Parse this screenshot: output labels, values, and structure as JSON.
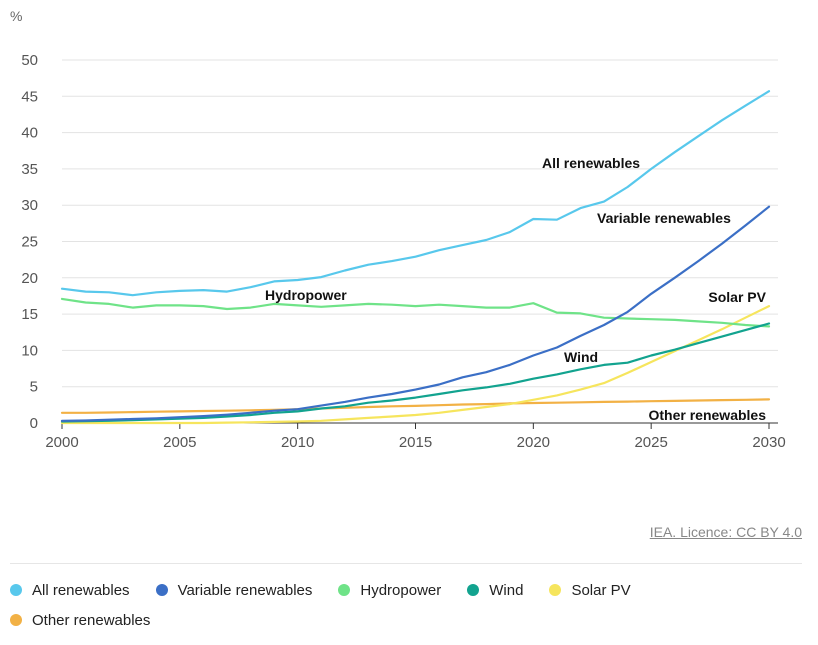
{
  "unit_label": "%",
  "credit": "IEA. Licence: CC BY 4.0",
  "legend": [
    {
      "name": "All renewables",
      "color": "#58c8ec"
    },
    {
      "name": "Variable renewables",
      "color": "#3b6fc6"
    },
    {
      "name": "Hydropower",
      "color": "#6fe388"
    },
    {
      "name": "Wind",
      "color": "#12a38f"
    },
    {
      "name": "Solar PV",
      "color": "#f6e55d"
    },
    {
      "name": "Other renewables",
      "color": "#f2b145"
    }
  ],
  "chart_data": {
    "type": "line",
    "title": "",
    "xlabel": "",
    "ylabel": "%",
    "xlim": [
      2000,
      2030
    ],
    "ylim": [
      0,
      50
    ],
    "xticks": [
      2000,
      2005,
      2010,
      2015,
      2020,
      2025,
      2030
    ],
    "yticks": [
      0,
      5,
      10,
      15,
      20,
      25,
      30,
      35,
      40,
      45,
      50
    ],
    "grid": "horizontal",
    "legend_position": "bottom",
    "x": [
      2000,
      2001,
      2002,
      2003,
      2004,
      2005,
      2006,
      2007,
      2008,
      2009,
      2010,
      2011,
      2012,
      2013,
      2014,
      2015,
      2016,
      2017,
      2018,
      2019,
      2020,
      2021,
      2022,
      2023,
      2024,
      2025,
      2026,
      2027,
      2028,
      2029,
      2030
    ],
    "series": [
      {
        "name": "All renewables",
        "color": "#58c8ec",
        "label": "All renewables",
        "values": [
          18.5,
          18.1,
          18.0,
          17.6,
          18.0,
          18.2,
          18.3,
          18.1,
          18.7,
          19.5,
          19.7,
          20.1,
          21.0,
          21.8,
          22.3,
          22.9,
          23.8,
          24.5,
          25.2,
          26.3,
          28.1,
          28.0,
          29.6,
          30.5,
          32.5,
          35.0,
          37.3,
          39.5,
          41.7,
          43.7,
          45.7
        ]
      },
      {
        "name": "Variable renewables",
        "color": "#3b6fc6",
        "label": "Variable renewables",
        "values": [
          0.3,
          0.35,
          0.45,
          0.55,
          0.65,
          0.8,
          0.95,
          1.15,
          1.4,
          1.7,
          1.9,
          2.4,
          2.9,
          3.5,
          4.0,
          4.6,
          5.3,
          6.3,
          7.0,
          8.0,
          9.3,
          10.4,
          12.0,
          13.5,
          15.3,
          17.8,
          20.0,
          22.3,
          24.7,
          27.2,
          29.8
        ]
      },
      {
        "name": "Hydropower",
        "color": "#6fe388",
        "label": "Hydropower",
        "values": [
          17.1,
          16.6,
          16.4,
          15.9,
          16.2,
          16.2,
          16.1,
          15.7,
          15.9,
          16.4,
          16.2,
          16.0,
          16.2,
          16.4,
          16.3,
          16.1,
          16.3,
          16.1,
          15.9,
          15.9,
          16.5,
          15.2,
          15.1,
          14.5,
          14.4,
          14.3,
          14.2,
          14.0,
          13.8,
          13.5,
          13.3
        ]
      },
      {
        "name": "Wind",
        "color": "#12a38f",
        "label": "Wind",
        "values": [
          0.2,
          0.25,
          0.3,
          0.4,
          0.5,
          0.6,
          0.7,
          0.9,
          1.1,
          1.4,
          1.6,
          2.0,
          2.3,
          2.8,
          3.1,
          3.5,
          4.0,
          4.5,
          4.9,
          5.4,
          6.1,
          6.7,
          7.4,
          8.0,
          8.3,
          9.3,
          10.1,
          11.0,
          11.9,
          12.8,
          13.7
        ]
      },
      {
        "name": "Solar PV",
        "color": "#f6e55d",
        "label": "Solar PV",
        "values": [
          0.0,
          0.0,
          0.0,
          0.0,
          0.0,
          0.0,
          0.0,
          0.05,
          0.1,
          0.15,
          0.2,
          0.3,
          0.5,
          0.7,
          0.9,
          1.1,
          1.4,
          1.8,
          2.2,
          2.6,
          3.2,
          3.8,
          4.6,
          5.5,
          6.9,
          8.4,
          9.9,
          11.4,
          12.9,
          14.5,
          16.1
        ]
      },
      {
        "name": "Other renewables",
        "color": "#f2b145",
        "label": "Other renewables",
        "values": [
          1.4,
          1.4,
          1.45,
          1.5,
          1.55,
          1.6,
          1.65,
          1.7,
          1.75,
          1.8,
          1.9,
          2.0,
          2.1,
          2.2,
          2.3,
          2.35,
          2.45,
          2.55,
          2.6,
          2.7,
          2.75,
          2.8,
          2.85,
          2.9,
          2.95,
          3.0,
          3.05,
          3.1,
          3.15,
          3.2,
          3.25
        ]
      }
    ]
  }
}
